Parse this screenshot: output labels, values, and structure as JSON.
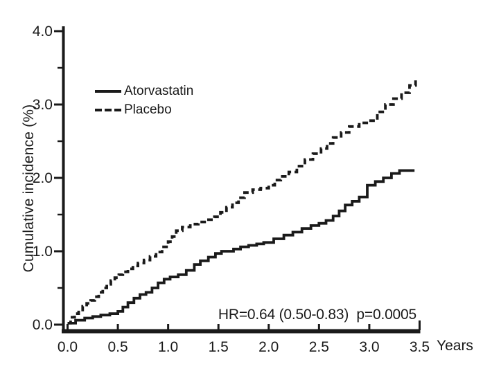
{
  "figure": {
    "background": "#ffffff",
    "ink_color": "#1a1a1a"
  },
  "chart_data": {
    "type": "line",
    "subtype": "step-cumulative-incidence",
    "title": "",
    "xlabel": "Years",
    "ylabel": "Cumulative incidence (%)",
    "xlim": [
      0,
      3.5
    ],
    "ylim": [
      0,
      4.0
    ],
    "grid": false,
    "legend_position": "upper-left-inside",
    "x_ticks": [
      0.0,
      0.5,
      1.0,
      1.5,
      2.0,
      2.5,
      3.0,
      3.5
    ],
    "x_tick_labels": [
      "0.0",
      "0.5",
      "1.0",
      "1.5",
      "2.0",
      "2.5",
      "3.0",
      "3.5"
    ],
    "y_ticks_major": [
      0.0,
      1.0,
      2.0,
      3.0,
      4.0
    ],
    "y_tick_labels": [
      "0.0",
      "1.0",
      "2.0",
      "3.0",
      "4.0"
    ],
    "y_ticks_minor": [
      0.5,
      1.5,
      2.5,
      3.5
    ],
    "annotation": "HR=0.64 (0.50-0.83)  p=0.0005",
    "series": [
      {
        "name": "Atorvastatin",
        "style": "solid",
        "color": "#1a1a1a",
        "x": [
          0.0,
          0.08,
          0.17,
          0.25,
          0.33,
          0.42,
          0.5,
          0.55,
          0.6,
          0.66,
          0.72,
          0.78,
          0.84,
          0.9,
          0.96,
          1.02,
          1.1,
          1.18,
          1.26,
          1.32,
          1.4,
          1.47,
          1.53,
          1.65,
          1.72,
          1.8,
          1.88,
          1.95,
          2.05,
          2.15,
          2.24,
          2.33,
          2.42,
          2.5,
          2.57,
          2.64,
          2.7,
          2.76,
          2.83,
          2.9,
          2.98,
          3.06,
          3.14,
          3.22,
          3.3,
          3.45
        ],
        "y": [
          0.02,
          0.06,
          0.09,
          0.11,
          0.13,
          0.15,
          0.18,
          0.24,
          0.3,
          0.36,
          0.41,
          0.44,
          0.5,
          0.57,
          0.62,
          0.65,
          0.68,
          0.74,
          0.82,
          0.87,
          0.92,
          0.97,
          1.0,
          1.03,
          1.06,
          1.08,
          1.1,
          1.12,
          1.17,
          1.22,
          1.26,
          1.31,
          1.35,
          1.38,
          1.42,
          1.48,
          1.55,
          1.63,
          1.68,
          1.74,
          1.9,
          1.95,
          2.0,
          2.06,
          2.1,
          2.1
        ]
      },
      {
        "name": "Placebo",
        "style": "dashed",
        "color": "#1a1a1a",
        "x": [
          0.0,
          0.03,
          0.07,
          0.11,
          0.15,
          0.19,
          0.23,
          0.27,
          0.31,
          0.35,
          0.39,
          0.43,
          0.47,
          0.51,
          0.55,
          0.6,
          0.65,
          0.7,
          0.76,
          0.82,
          0.88,
          0.94,
          1.0,
          1.04,
          1.08,
          1.14,
          1.22,
          1.3,
          1.38,
          1.46,
          1.52,
          1.58,
          1.64,
          1.7,
          1.76,
          1.84,
          1.92,
          2.0,
          2.06,
          2.12,
          2.2,
          2.28,
          2.36,
          2.44,
          2.52,
          2.58,
          2.64,
          2.72,
          2.8,
          2.9,
          3.0,
          3.08,
          3.16,
          3.24,
          3.32,
          3.4,
          3.46
        ],
        "y": [
          0.02,
          0.1,
          0.15,
          0.2,
          0.25,
          0.29,
          0.33,
          0.38,
          0.44,
          0.5,
          0.55,
          0.6,
          0.64,
          0.68,
          0.72,
          0.76,
          0.8,
          0.84,
          0.88,
          0.93,
          0.99,
          1.06,
          1.13,
          1.2,
          1.28,
          1.33,
          1.37,
          1.4,
          1.43,
          1.47,
          1.53,
          1.6,
          1.66,
          1.73,
          1.8,
          1.84,
          1.86,
          1.9,
          1.97,
          2.02,
          2.08,
          2.16,
          2.25,
          2.33,
          2.4,
          2.47,
          2.55,
          2.62,
          2.7,
          2.75,
          2.78,
          2.9,
          3.0,
          3.08,
          3.16,
          3.26,
          3.35
        ]
      }
    ]
  },
  "legend": {
    "items": [
      {
        "label": "Atorvastatin",
        "line_style": "solid"
      },
      {
        "label": "Placebo",
        "line_style": "dashed"
      }
    ]
  },
  "annotation": {
    "text": "HR=0.64 (0.50-0.83)  p=0.0005"
  }
}
